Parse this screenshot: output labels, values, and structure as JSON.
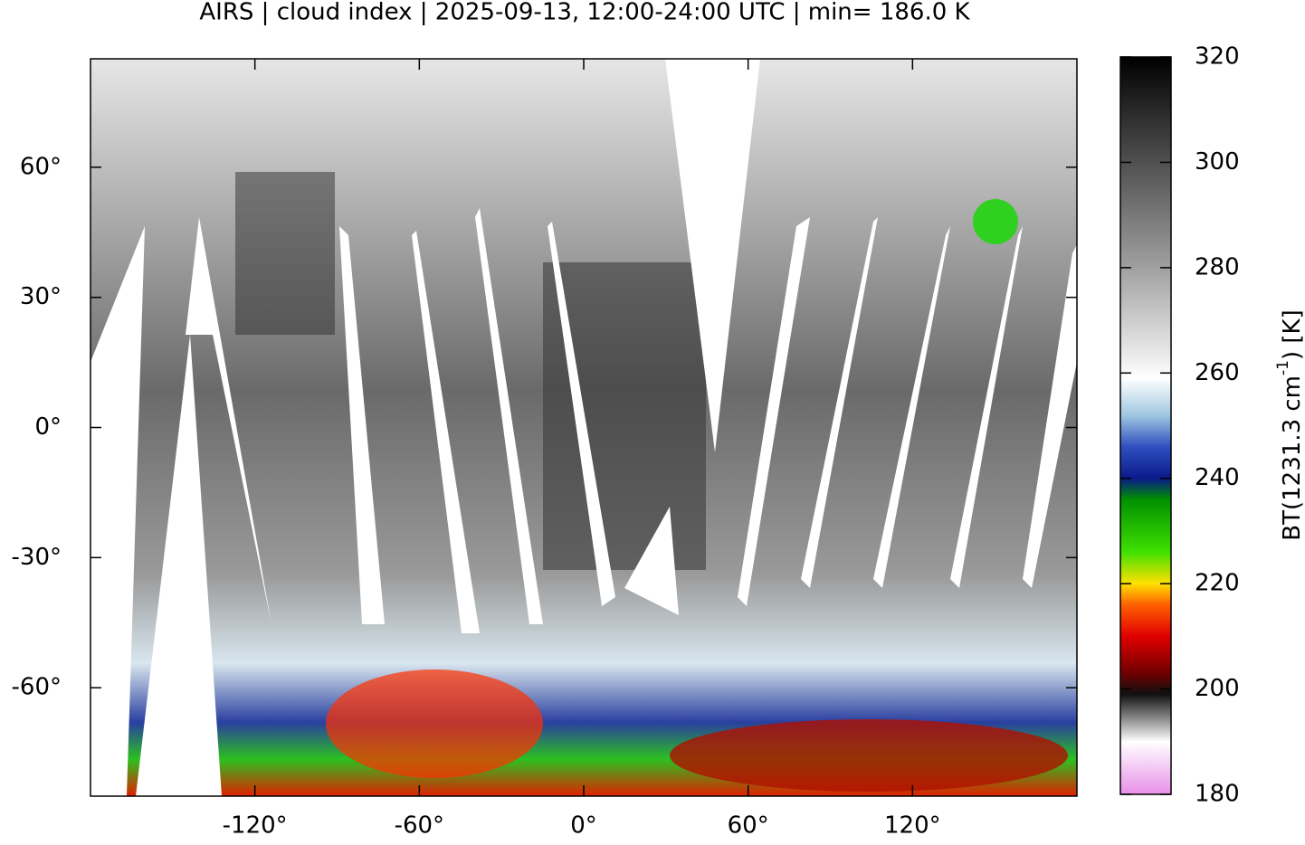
{
  "chart_data": {
    "type": "map",
    "title": "AIRS | cloud index | 2025-09-13, 12:00-24:00 UTC | min= 186.0 K",
    "xlim": [
      -180,
      180
    ],
    "ylim": [
      -85,
      85
    ],
    "xticks": [
      {
        "value": -120,
        "label": "-120°"
      },
      {
        "value": -60,
        "label": "-60°"
      },
      {
        "value": 0,
        "label": "0°"
      },
      {
        "value": 60,
        "label": "60°"
      },
      {
        "value": 120,
        "label": "120°"
      }
    ],
    "yticks": [
      {
        "value": -60,
        "label": "-60°"
      },
      {
        "value": -30,
        "label": "-30°"
      },
      {
        "value": 0,
        "label": "0°"
      },
      {
        "value": 30,
        "label": "30°"
      },
      {
        "value": 60,
        "label": "60°"
      }
    ],
    "colorbar": {
      "label": [
        "BT(1231.3 cm",
        "-1",
        ") [K]"
      ],
      "ylim": [
        180,
        320
      ],
      "yticks": [
        180,
        200,
        220,
        240,
        260,
        280,
        300,
        320
      ],
      "colorscale": [
        [
          180,
          "#e890e8"
        ],
        [
          190,
          "#ffffff"
        ],
        [
          199,
          "#101010"
        ],
        [
          203,
          "#700000"
        ],
        [
          210,
          "#e00000"
        ],
        [
          216,
          "#ff6000"
        ],
        [
          220,
          "#ffe000"
        ],
        [
          226,
          "#40e000"
        ],
        [
          236,
          "#009000"
        ],
        [
          240,
          "#0a1a8a"
        ],
        [
          246,
          "#3050c0"
        ],
        [
          252,
          "#a0c8e0"
        ],
        [
          259,
          "#ffffff"
        ],
        [
          262,
          "#f0f0f0"
        ],
        [
          280,
          "#a0a0a0"
        ],
        [
          300,
          "#505050"
        ],
        [
          320,
          "#000000"
        ]
      ]
    }
  }
}
